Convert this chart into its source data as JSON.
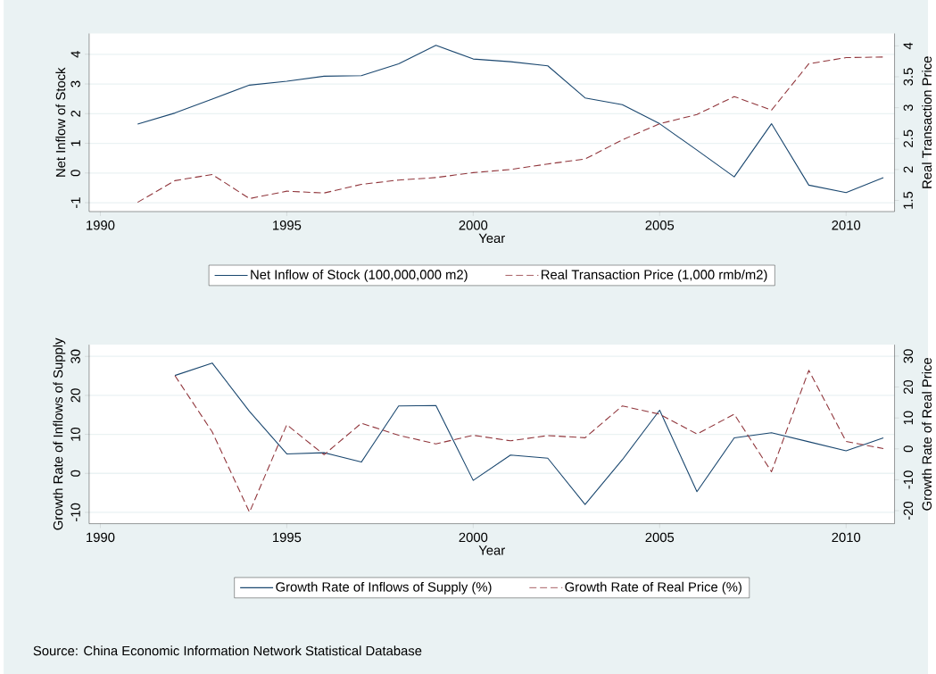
{
  "chart_data": [
    {
      "type": "line",
      "xlabel": "Year",
      "ylabel": "Net Inflow of Stock",
      "y2label": "Real Transaction Price",
      "x": [
        1991,
        1992,
        1993,
        1994,
        1995,
        1996,
        1997,
        1998,
        1999,
        2000,
        2001,
        2002,
        2003,
        2004,
        2005,
        2006,
        2007,
        2008,
        2009,
        2010,
        2011
      ],
      "series": [
        {
          "name": "Net Inflow of Stock (100,000,000 m2)",
          "color": "#1a476f",
          "line_style": "solid",
          "values": [
            1.65,
            2.02,
            2.49,
            2.96,
            3.09,
            3.26,
            3.28,
            3.68,
            4.3,
            3.84,
            3.75,
            3.61,
            2.53,
            2.3,
            1.66,
            0.77,
            -0.13,
            1.66,
            -0.41,
            -0.66,
            -0.16
          ]
        },
        {
          "name": "Real Transaction Price (1,000 rmb/m2)",
          "color": "#90353b",
          "line_style": "dashed",
          "axis": "y2",
          "values": [
            1.47,
            1.82,
            1.92,
            1.53,
            1.65,
            1.62,
            1.76,
            1.83,
            1.87,
            1.95,
            2.0,
            2.09,
            2.17,
            2.48,
            2.74,
            2.89,
            3.18,
            2.96,
            3.71,
            3.81,
            3.82
          ]
        }
      ],
      "xlim": [
        1989.7,
        2011.3
      ],
      "xticks": [
        1990,
        1995,
        2000,
        2005,
        2010
      ],
      "ylim": [
        -1.3,
        4.7
      ],
      "yticks": [
        -1,
        0,
        1,
        2,
        3,
        4
      ],
      "y2lim": [
        1.32,
        4.2
      ],
      "y2ticks": [
        1.5,
        2,
        2.5,
        3,
        3.5,
        4
      ],
      "grid": "y",
      "legend": "bottom"
    },
    {
      "type": "line",
      "xlabel": "Year",
      "ylabel": "Growth Rate of Inflows of Supply",
      "y2label": "Growth Rate of Real Price",
      "x": [
        1992,
        1993,
        1994,
        1995,
        1996,
        1997,
        1998,
        1999,
        2000,
        2001,
        2002,
        2003,
        2004,
        2005,
        2006,
        2007,
        2008,
        2009,
        2010,
        2011
      ],
      "series": [
        {
          "name": "Growth Rate of Inflows of Supply (%)",
          "color": "#1a476f",
          "line_style": "solid",
          "values": [
            25.1,
            28.3,
            15.9,
            5.0,
            5.3,
            2.9,
            17.3,
            17.4,
            -1.8,
            4.7,
            3.9,
            -8.0,
            3.5,
            16.2,
            -4.7,
            9.1,
            10.4,
            8.1,
            5.8,
            9.1
          ]
        },
        {
          "name": "Growth Rate of Real Price (%)",
          "color": "#90353b",
          "line_style": "dashed",
          "axis": "y2",
          "values": [
            23.7,
            5.5,
            -20.5,
            7.8,
            -1.9,
            8.3,
            4.4,
            1.6,
            4.4,
            2.6,
            4.3,
            3.6,
            13.9,
            11.2,
            4.8,
            11.2,
            -7.4,
            25.4,
            2.4,
            0.1
          ]
        }
      ],
      "xlim": [
        1989.7,
        2011.3
      ],
      "xticks": [
        1990,
        1995,
        2000,
        2005,
        2010
      ],
      "ylim": [
        -12.9,
        33
      ],
      "yticks": [
        -10,
        0,
        10,
        20,
        30
      ],
      "y2lim": [
        -24.2,
        33.7
      ],
      "y2ticks": [
        -20,
        -10,
        0,
        10,
        20,
        30
      ],
      "grid": "y",
      "legend": "bottom",
      "annotations": [
        "Source: China Economic Information Network Statistical Database"
      ]
    }
  ]
}
